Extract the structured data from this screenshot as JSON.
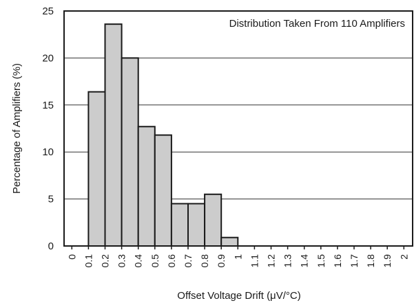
{
  "chart_data": {
    "type": "bar",
    "annotation": "Distribution Taken From 110 Amplifiers",
    "xlabel": "Offset Voltage Drift (μV/°C)",
    "ylabel": "Percentage of Amplifiers (%)",
    "ylim": [
      0,
      25
    ],
    "yticks": [
      "0",
      "5",
      "10",
      "15",
      "20",
      "25"
    ],
    "xticks": [
      "0",
      "0.1",
      "0.2",
      "0.3",
      "0.4",
      "0.5",
      "0.6",
      "0.7",
      "0.8",
      "0.9",
      "1",
      "1.1",
      "1.2",
      "1.3",
      "1.4",
      "1.5",
      "1.6",
      "1.7",
      "1.8",
      "1.9",
      "2"
    ],
    "bins": [
      {
        "from": 0.1,
        "to": 0.2,
        "value": 16.4
      },
      {
        "from": 0.2,
        "to": 0.3,
        "value": 23.6
      },
      {
        "from": 0.3,
        "to": 0.4,
        "value": 20.0
      },
      {
        "from": 0.4,
        "to": 0.5,
        "value": 12.7
      },
      {
        "from": 0.5,
        "to": 0.6,
        "value": 11.8
      },
      {
        "from": 0.6,
        "to": 0.7,
        "value": 4.5
      },
      {
        "from": 0.7,
        "to": 0.8,
        "value": 4.5
      },
      {
        "from": 0.8,
        "to": 0.9,
        "value": 5.5
      },
      {
        "from": 0.9,
        "to": 1.0,
        "value": 0.9
      }
    ],
    "grid": true
  }
}
